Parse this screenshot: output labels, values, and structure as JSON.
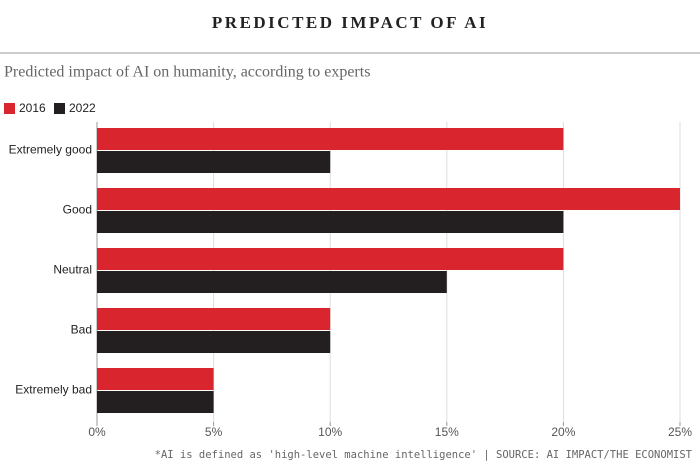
{
  "chart_data": {
    "type": "bar",
    "orientation": "horizontal",
    "title": "PREDICTED IMPACT OF AI",
    "subtitle": "Predicted impact of AI on humanity, according to experts",
    "categories": [
      "Extremely good",
      "Good",
      "Neutral",
      "Bad",
      "Extremely bad"
    ],
    "series": [
      {
        "name": "2016",
        "color": "#d9252e",
        "values": [
          20,
          25,
          20,
          10,
          5
        ]
      },
      {
        "name": "2022",
        "color": "#231f20",
        "values": [
          10,
          20,
          15,
          10,
          5
        ]
      }
    ],
    "xlim": [
      0,
      25
    ],
    "xticks": [
      {
        "value": 0,
        "label": "0%"
      },
      {
        "value": 5,
        "label": "5%"
      },
      {
        "value": 10,
        "label": "10%"
      },
      {
        "value": 15,
        "label": "15%"
      },
      {
        "value": 20,
        "label": "20%"
      },
      {
        "value": 25,
        "label": "25%"
      }
    ],
    "grid": true,
    "footnote": "*AI is defined as 'high-level machine intelligence' | SOURCE: AI IMPACT/THE ECONOMIST"
  }
}
